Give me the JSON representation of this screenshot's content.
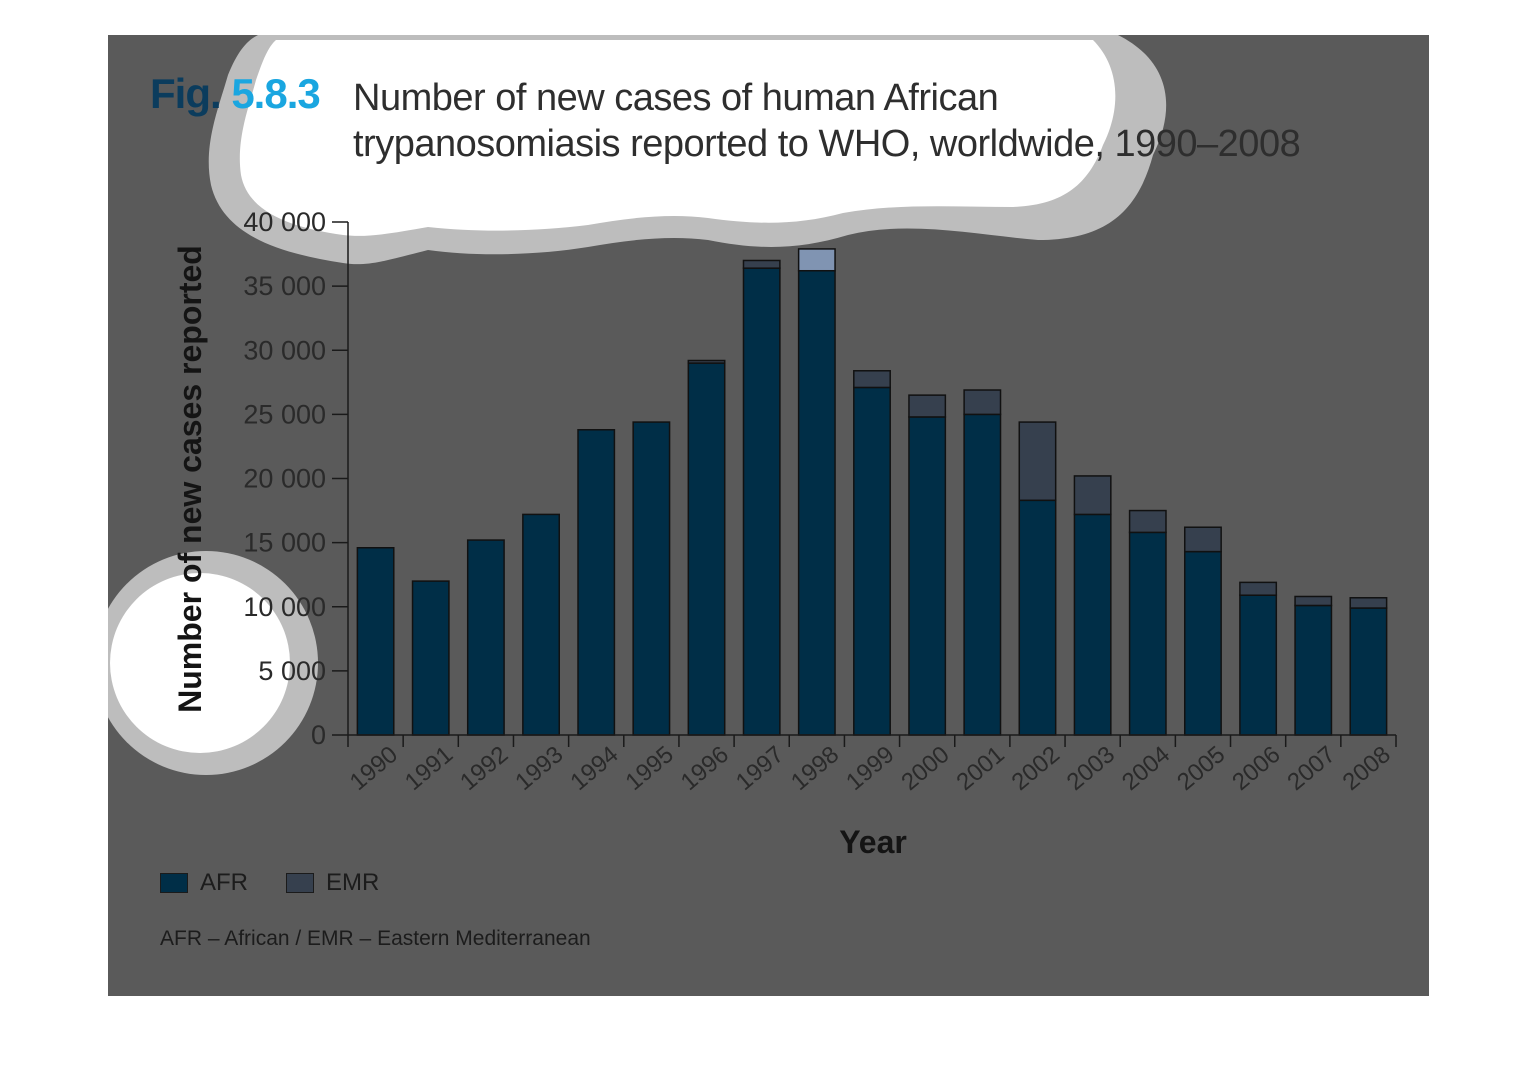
{
  "figure": {
    "number_word": "Fig.",
    "number_digits": "5.8.3",
    "title_line1": "Number of new cases of human African",
    "title_line2": "trypanosomiasis reported to WHO, worldwide, 1990–2008"
  },
  "colors": {
    "afr": "#002e47",
    "emr": "#36404e",
    "emr_highlight": "#8094b2",
    "background": "#5a5a5a"
  },
  "legend": {
    "afr_label": "AFR",
    "emr_label": "EMR"
  },
  "footnote": "AFR – African / EMR – Eastern Mediterranean",
  "chart_data": {
    "type": "bar",
    "stacked": true,
    "xlabel": "Year",
    "ylabel": "Number of new cases reported",
    "ylim": [
      0,
      40000
    ],
    "yticks": [
      0,
      5000,
      10000,
      15000,
      20000,
      25000,
      30000,
      35000,
      40000
    ],
    "ytick_labels": [
      "0",
      "5 000",
      "10 000",
      "15 000",
      "20 000",
      "25 000",
      "30 000",
      "35 000",
      "40 000"
    ],
    "categories": [
      "1990",
      "1991",
      "1992",
      "1993",
      "1994",
      "1995",
      "1996",
      "1997",
      "1998",
      "1999",
      "2000",
      "2001",
      "2002",
      "2003",
      "2004",
      "2005",
      "2006",
      "2007",
      "2008"
    ],
    "series": [
      {
        "name": "AFR",
        "values": [
          14600,
          12000,
          15200,
          17200,
          23800,
          24400,
          29000,
          36400,
          36200,
          27100,
          24800,
          25000,
          18300,
          17200,
          15800,
          14300,
          10900,
          10100,
          9900
        ]
      },
      {
        "name": "EMR",
        "values": [
          0,
          0,
          0,
          0,
          0,
          0,
          200,
          600,
          1700,
          1300,
          1700,
          1900,
          6100,
          3000,
          1700,
          1900,
          1000,
          700,
          800
        ]
      }
    ],
    "legend_position": "bottom-left",
    "grid": false
  }
}
